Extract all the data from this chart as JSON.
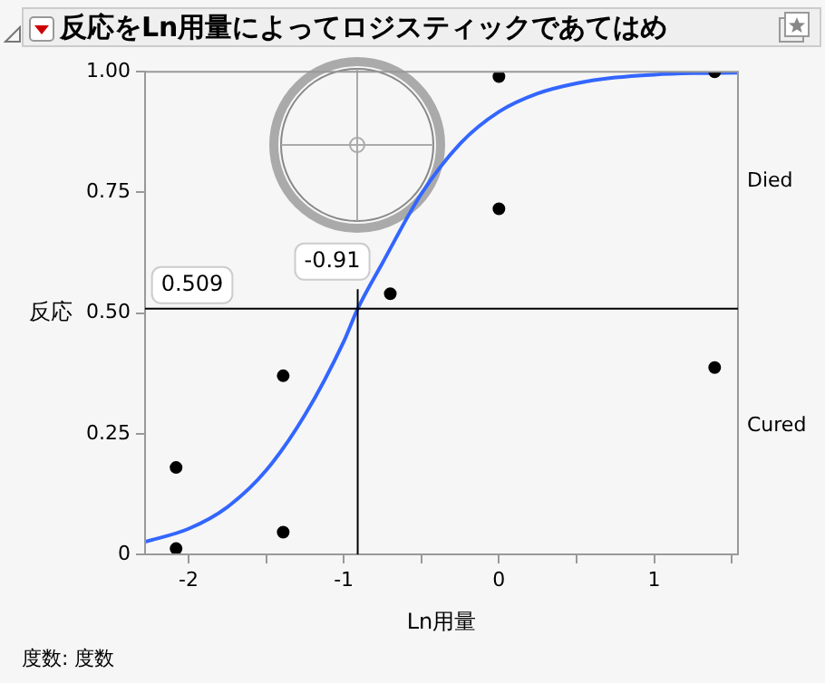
{
  "chart_data": {
    "type": "scatter",
    "title": "反応をLn用量によってロジスティックであてはめ",
    "xlabel": "Ln用量",
    "ylabel": "反応",
    "xlim": [
      -2.28,
      1.54
    ],
    "xticks": [
      -2,
      {
        "value": -1.5,
        "label": null
      },
      -1,
      {
        "value": -0.5,
        "label": null
      },
      0,
      {
        "value": 0.5,
        "label": null
      },
      1,
      {
        "value": 1.5,
        "label": null
      }
    ],
    "ylim": [
      0,
      1
    ],
    "yticks": [
      0,
      0.25,
      {
        "value": 0.5,
        "label": "0.50"
      },
      0.75,
      {
        "value": 1,
        "label": "1.00"
      }
    ],
    "series": [
      {
        "type": "scatter",
        "color": "#000000",
        "x": [
          -2.08,
          -2.08,
          -1.39,
          -1.39,
          -0.7,
          0,
          0,
          1.39,
          1.39
        ],
        "values": [
          0.012,
          0.18,
          0.37,
          0.046,
          0.54,
          0.99,
          0.716,
          1.0,
          0.387
        ]
      },
      {
        "type": "line",
        "color": "#3366ff",
        "marker": "none",
        "x": [
          -2.28,
          -2.0,
          -1.75,
          -1.5,
          -1.25,
          -1.0,
          -0.91,
          -0.75,
          -0.5,
          -0.25,
          0,
          0.25,
          0.5,
          0.75,
          1.0,
          1.25,
          1.54
        ],
        "values": [
          0.026,
          0.053,
          0.098,
          0.174,
          0.289,
          0.441,
          0.509,
          0.604,
          0.747,
          0.851,
          0.917,
          0.955,
          0.976,
          0.988,
          0.994,
          0.997,
          0.998
        ]
      }
    ],
    "ref_lines": [
      {
        "axis": "x",
        "value": -0.91,
        "label": "-0.91",
        "color": "#000000"
      },
      {
        "axis": "y",
        "value": 0.509,
        "label": "0.509",
        "color": "#000000"
      }
    ],
    "annotations": [
      "度数: 度数",
      "Died",
      "Cured"
    ],
    "grid": false,
    "legend": false,
    "marker": "circle"
  }
}
